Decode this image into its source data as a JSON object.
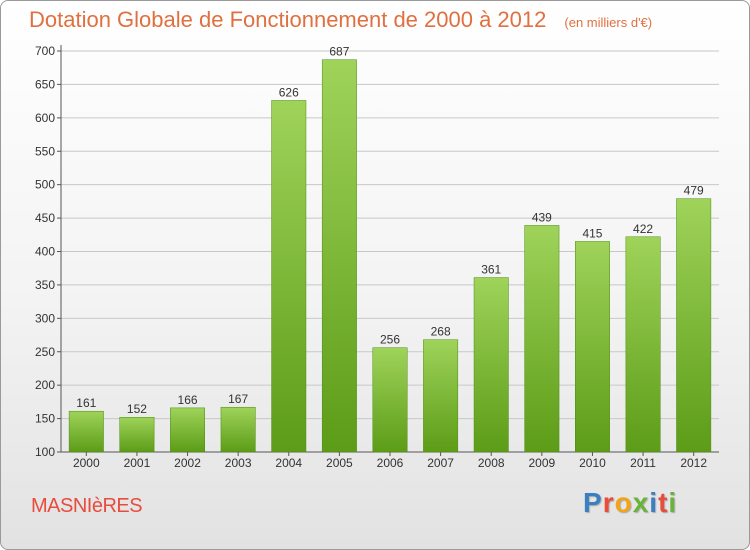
{
  "header": {
    "title": "Dotation Globale de Fonctionnement de 2000 à 2012",
    "subtitle": "(en milliers d'€)"
  },
  "footer": {
    "place_name": "MASNIèRES",
    "logo_text": "Proxiti",
    "logo_colors": [
      "#3a7fc1",
      "#e84c3d",
      "#f2a31c",
      "#6ab33a",
      "#3a7fc1",
      "#e84c3d",
      "#6ab33a"
    ]
  },
  "colors": {
    "bar_light": "#9fd35a",
    "bar_dark": "#5c9c17",
    "grid": "#c8c8c8",
    "axis": "#555555"
  },
  "chart_data": {
    "type": "bar",
    "title": "Dotation Globale de Fonctionnement de 2000 à 2012",
    "subtitle": "(en milliers d'€)",
    "xlabel": "",
    "ylabel": "",
    "categories": [
      "2000",
      "2001",
      "2002",
      "2003",
      "2004",
      "2005",
      "2006",
      "2007",
      "2008",
      "2009",
      "2010",
      "2011",
      "2012"
    ],
    "values": [
      161,
      152,
      166,
      167,
      626,
      687,
      256,
      268,
      361,
      439,
      415,
      422,
      479
    ],
    "ylim": [
      100,
      700
    ],
    "yticks": [
      100,
      150,
      200,
      250,
      300,
      350,
      400,
      450,
      500,
      550,
      600,
      650,
      700
    ],
    "grid": true,
    "data_labels": true
  }
}
